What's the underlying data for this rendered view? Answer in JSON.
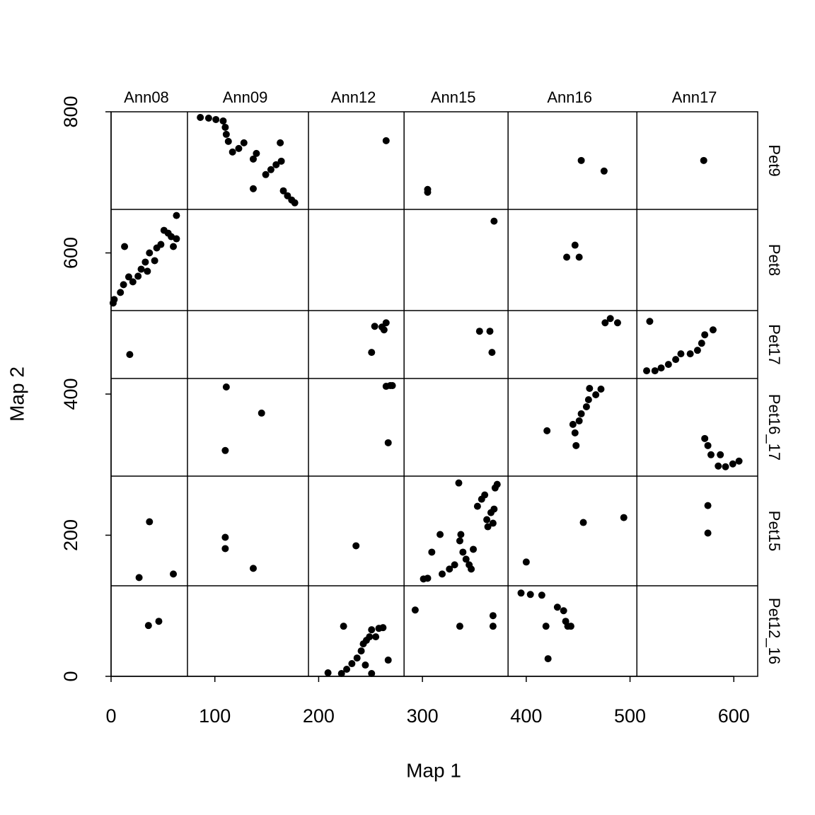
{
  "chart_data": {
    "type": "scatter",
    "x_label": "Map 1",
    "y_label": "Map 2",
    "xlim": [
      0,
      623
    ],
    "ylim": [
      0,
      800
    ],
    "xticks": [
      0,
      100,
      200,
      300,
      400,
      500,
      600
    ],
    "yticks": [
      0,
      200,
      400,
      600,
      800
    ],
    "column_labels": [
      "Ann08",
      "Ann09",
      "Ann12",
      "Ann15",
      "Ann16",
      "Ann17"
    ],
    "row_labels": [
      "Pet9",
      "Pet8",
      "Pet17",
      "Pet16_17",
      "Pet15",
      "Pet12_16"
    ],
    "xbreaks": [
      73.6,
      190.2,
      282.3,
      382.5,
      506.6
    ],
    "ybreaks": [
      661.7,
      518.3,
      422.1,
      283.7,
      128.3
    ],
    "color": "#000000",
    "x": [
      2,
      3,
      9,
      12,
      13,
      17,
      21,
      26,
      29,
      33,
      35,
      37,
      42,
      44,
      48,
      51,
      55,
      58,
      60,
      63,
      63,
      18,
      37,
      27,
      60,
      36,
      46,
      86,
      94,
      101,
      108,
      110,
      111,
      113,
      117,
      123,
      128,
      137,
      137,
      140,
      149,
      154,
      159,
      163,
      164,
      166,
      170,
      174,
      177,
      111,
      110,
      145,
      110,
      110,
      137,
      265,
      254,
      251,
      261,
      265,
      263,
      265,
      269,
      271,
      267,
      236,
      209,
      222,
      227,
      232,
      237,
      241,
      243,
      246,
      249,
      251,
      255,
      258,
      262,
      267,
      251,
      224,
      245,
      305,
      305,
      369,
      355,
      365,
      367,
      301,
      305,
      309,
      317,
      319,
      326,
      331,
      335,
      336,
      337,
      339,
      342,
      345,
      347,
      349,
      353,
      357,
      360,
      362,
      363,
      366,
      369,
      370,
      372,
      368,
      293,
      336,
      368,
      368,
      453,
      475,
      439,
      447,
      451,
      476,
      481,
      488,
      420,
      445,
      447,
      448,
      451,
      453,
      458,
      460,
      461,
      467,
      472,
      400,
      455,
      494,
      395,
      404,
      415,
      419,
      421,
      430,
      436,
      438,
      440,
      443,
      571,
      516,
      524,
      530,
      537,
      544,
      549,
      558,
      565,
      569,
      572,
      580,
      519,
      572,
      575,
      578,
      587,
      585,
      592,
      599,
      605,
      575,
      575
    ],
    "values": [
      529,
      534,
      544,
      555,
      609,
      566,
      559,
      567,
      577,
      587,
      574,
      600,
      589,
      607,
      612,
      632,
      628,
      623,
      609,
      653,
      620,
      456,
      219,
      140,
      145,
      72,
      78,
      792,
      791,
      789,
      787,
      778,
      768,
      758,
      743,
      748,
      756,
      691,
      733,
      741,
      711,
      718,
      725,
      756,
      730,
      688,
      681,
      675,
      671,
      410,
      320,
      373,
      197,
      181,
      153,
      759,
      496,
      459,
      495,
      501,
      491,
      411,
      412,
      412,
      331,
      185,
      5,
      4,
      10,
      18,
      26,
      36,
      46,
      51,
      56,
      66,
      56,
      68,
      69,
      23,
      4,
      71,
      16,
      690,
      686,
      645,
      489,
      489,
      459,
      138,
      139,
      176,
      201,
      145,
      152,
      158,
      274,
      192,
      201,
      176,
      166,
      158,
      152,
      180,
      241,
      251,
      257,
      222,
      212,
      232,
      237,
      267,
      272,
      217,
      94,
      71,
      86,
      71,
      731,
      716,
      594,
      611,
      594,
      501,
      507,
      501,
      348,
      357,
      345,
      327,
      362,
      372,
      382,
      392,
      408,
      399,
      407,
      162,
      218,
      225,
      118,
      116,
      115,
      71,
      25,
      98,
      93,
      78,
      71,
      71,
      731,
      433,
      433,
      437,
      442,
      449,
      457,
      457,
      462,
      472,
      484,
      491,
      503,
      337,
      327,
      314,
      314,
      298,
      297,
      301,
      305,
      242,
      203
    ]
  }
}
